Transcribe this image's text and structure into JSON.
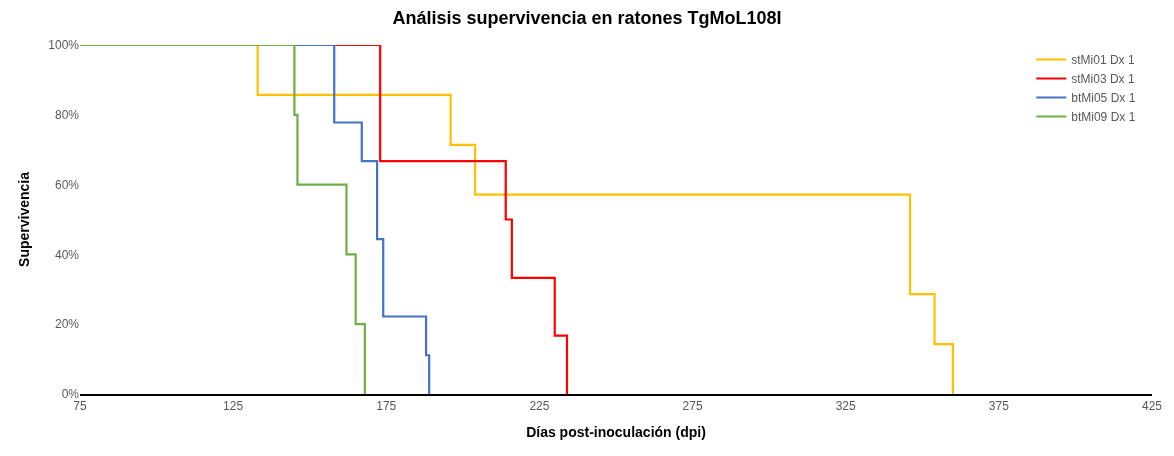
{
  "chart_data": {
    "type": "step",
    "title": "Análisis supervivencia en ratones TgMoL108I",
    "xlabel": "Días post-inoculación (dpi)",
    "ylabel": "Supervivencia",
    "xlim": [
      75,
      425
    ],
    "xticks": [
      75,
      125,
      175,
      225,
      275,
      325,
      375,
      425
    ],
    "ylim": [
      0,
      100
    ],
    "yticks": [
      {
        "value": 0,
        "label": "0%"
      },
      {
        "value": 20,
        "label": "20%"
      },
      {
        "value": 40,
        "label": "40%"
      },
      {
        "value": 60,
        "label": "60%"
      },
      {
        "value": 80,
        "label": "80%"
      },
      {
        "value": 100,
        "label": "100%"
      }
    ],
    "legend": "top right",
    "marker": "none",
    "line_style": "solid",
    "series": [
      {
        "name": "stMi01 Dx 1",
        "color": "#ffc000",
        "x": [
          75,
          133,
          196,
          204,
          346,
          354,
          360
        ],
        "values": [
          100,
          85.7,
          71.4,
          57.1,
          28.6,
          14.3,
          0
        ]
      },
      {
        "name": "stMi03 Dx 1",
        "color": "#ff0000",
        "x": [
          75,
          173,
          214,
          216,
          230,
          234
        ],
        "values": [
          100,
          66.7,
          50,
          33.3,
          16.7,
          0
        ]
      },
      {
        "name": "btMi05 Dx 1",
        "color": "#4472c4",
        "x": [
          75,
          158,
          167,
          172,
          174,
          188,
          189
        ],
        "values": [
          100,
          77.8,
          66.7,
          44.4,
          22.2,
          11.1,
          0
        ]
      },
      {
        "name": "btMi09 Dx 1",
        "color": "#70ad47",
        "x": [
          75,
          145,
          146,
          162,
          165,
          168
        ],
        "values": [
          100,
          80,
          60,
          40,
          20,
          0
        ]
      }
    ]
  }
}
